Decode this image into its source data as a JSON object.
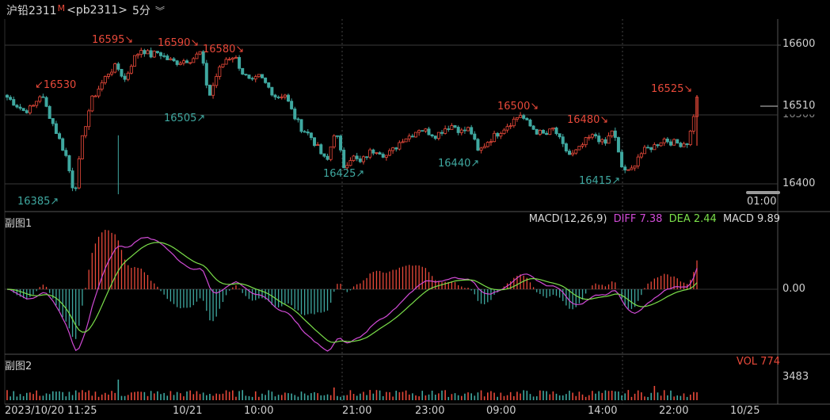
{
  "header": {
    "title": "沪铅2311",
    "badge": "M",
    "symbol": "<pb2311>",
    "period": "5分",
    "expand_icon": "chevron-down-double-icon"
  },
  "price_axis": {
    "ticks": [
      "16600",
      "16510",
      "16500",
      "16400"
    ],
    "time_readout": "01:00"
  },
  "annotations_high": [
    {
      "text": "↙16530"
    },
    {
      "text": "16595↘"
    },
    {
      "text": "16590↘"
    },
    {
      "text": "16580↘"
    },
    {
      "text": "16500↘"
    },
    {
      "text": "16480↘"
    },
    {
      "text": "16525↘"
    }
  ],
  "annotations_low": [
    {
      "text": "16385↗"
    },
    {
      "text": "16505↗"
    },
    {
      "text": "16425↗"
    },
    {
      "text": "16440↗"
    },
    {
      "text": "16415↗"
    }
  ],
  "subchart1": {
    "title": "副图1",
    "indicator": "MACD(12,26,9)",
    "diff_label": "DIFF 7.38",
    "dea_label": "DEA 2.44",
    "macd_label": "MACD 9.89",
    "zero_label": "0.00"
  },
  "subchart2": {
    "title": "副图2",
    "vol_label": "VOL 774",
    "max_label": "3483"
  },
  "time_axis": [
    "2023/10/20 11:25",
    "10/21",
    "10:00",
    "21:00",
    "23:00",
    "09:00",
    "14:00",
    "22:00",
    "10/25"
  ],
  "colors": {
    "up": "#e8493a",
    "down": "#3fa8a0",
    "diff": "#d14bd6",
    "dea": "#7be04a",
    "grid": "#3a3a3a"
  },
  "chart_data": {
    "type": "candlestick",
    "ylim": [
      16370,
      16620
    ],
    "close_path": [
      16525,
      16515,
      16505,
      16510,
      16530,
      16500,
      16470,
      16440,
      16385,
      16470,
      16520,
      16540,
      16560,
      16570,
      16550,
      16580,
      16595,
      16585,
      16590,
      16580,
      16575,
      16578,
      16580,
      16590,
      16525,
      16560,
      16580,
      16585,
      16560,
      16545,
      16555,
      16540,
      16525,
      16530,
      16500,
      16480,
      16470,
      16450,
      16430,
      16480,
      16425,
      16440,
      16430,
      16445,
      16450,
      16440,
      16450,
      16465,
      16470,
      16480,
      16475,
      16470,
      16480,
      16485,
      16475,
      16480,
      16445,
      16460,
      16470,
      16480,
      16490,
      16500,
      16485,
      16475,
      16470,
      16480,
      16455,
      16440,
      16450,
      16465,
      16470,
      16455,
      16480,
      16425,
      16415,
      16440,
      16450,
      16455,
      16465,
      16460,
      16458,
      16460,
      16525
    ]
  }
}
